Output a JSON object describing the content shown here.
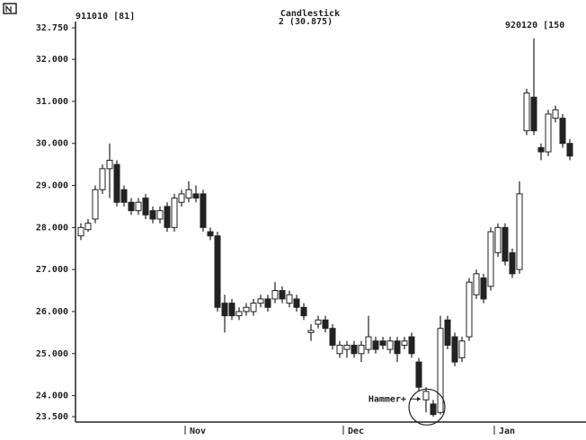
{
  "chart_data": {
    "type": "candlestick",
    "title": "Candlestick",
    "subtitle": "2 (30.875)",
    "left_label": "911010 [81]",
    "right_label": "920120 [150",
    "annotation": "Hammer+",
    "annotation_index": 48,
    "ylim": [
      23.5,
      32.75
    ],
    "yticks": [
      {
        "value": 23.5,
        "label": "23.500"
      },
      {
        "value": 24,
        "label": "24.000"
      },
      {
        "value": 25,
        "label": "25.000"
      },
      {
        "value": 26,
        "label": "26.000"
      },
      {
        "value": 27,
        "label": "27.000"
      },
      {
        "value": 28,
        "label": "28.000"
      },
      {
        "value": 29,
        "label": "29.000"
      },
      {
        "value": 30,
        "label": "30.000"
      },
      {
        "value": 31,
        "label": "31.000"
      },
      {
        "value": 32,
        "label": "32.000"
      },
      {
        "value": 32.75,
        "label": "32.750"
      }
    ],
    "categories": [
      null,
      null,
      null,
      null,
      null,
      null,
      null,
      null,
      null,
      null,
      null,
      null,
      null,
      null,
      null,
      "Nov",
      null,
      null,
      null,
      null,
      null,
      null,
      null,
      null,
      null,
      null,
      null,
      null,
      null,
      null,
      null,
      null,
      null,
      null,
      null,
      null,
      null,
      "Dec",
      null,
      null,
      null,
      null,
      null,
      null,
      null,
      null,
      null,
      null,
      null,
      null,
      null,
      null,
      null,
      null,
      null,
      null,
      null,
      null,
      "Jan",
      null,
      null,
      null,
      null,
      null,
      null,
      null,
      null,
      null,
      null
    ],
    "open": [
      27.8,
      27.95,
      28.2,
      28.9,
      29.4,
      29.5,
      28.9,
      28.6,
      28.4,
      28.7,
      28.4,
      28.2,
      28.5,
      28.0,
      28.6,
      28.7,
      28.8,
      28.8,
      27.9,
      27.8,
      26.2,
      26.2,
      25.9,
      26.0,
      26.0,
      26.2,
      26.3,
      26.3,
      26.5,
      26.2,
      26.3,
      26.1,
      25.5,
      25.7,
      25.8,
      25.6,
      25.0,
      25.1,
      25.2,
      25.0,
      25.1,
      25.3,
      25.3,
      25.1,
      25.3,
      25.2,
      25.4,
      24.8,
      23.9,
      23.8,
      23.6,
      25.8,
      25.4,
      24.9,
      25.4,
      26.4,
      26.8,
      26.6,
      27.4,
      28.0,
      27.4,
      27.0,
      30.3,
      31.1,
      29.9,
      29.8,
      30.6,
      30.6,
      30.0
    ],
    "high": [
      28.1,
      28.2,
      29.0,
      29.5,
      30.0,
      29.6,
      29.0,
      28.7,
      28.7,
      28.8,
      28.5,
      28.5,
      28.6,
      28.8,
      28.9,
      29.1,
      29.0,
      28.9,
      28.0,
      27.9,
      26.4,
      26.3,
      26.1,
      26.2,
      26.3,
      26.4,
      26.4,
      26.7,
      26.6,
      26.5,
      26.4,
      26.2,
      25.7,
      25.9,
      25.9,
      25.7,
      25.3,
      25.3,
      25.3,
      25.3,
      25.9,
      25.4,
      25.4,
      25.4,
      25.4,
      25.4,
      25.5,
      24.9,
      24.2,
      23.9,
      25.9,
      25.9,
      25.5,
      25.4,
      26.8,
      27.0,
      26.9,
      28.0,
      28.1,
      28.1,
      27.5,
      29.1,
      31.3,
      32.5,
      30.0,
      30.8,
      30.9,
      30.7,
      30.1
    ],
    "low": [
      27.7,
      27.9,
      28.1,
      28.8,
      28.7,
      28.5,
      28.5,
      28.3,
      28.3,
      28.2,
      28.1,
      28.1,
      27.9,
      27.9,
      28.5,
      28.6,
      28.6,
      27.9,
      27.7,
      26.0,
      25.5,
      25.8,
      25.8,
      25.9,
      25.9,
      26.1,
      26.0,
      26.2,
      26.2,
      26.1,
      26.0,
      25.8,
      25.3,
      25.6,
      25.5,
      25.1,
      24.9,
      24.9,
      24.9,
      24.8,
      25.0,
      25.0,
      25.1,
      25.0,
      24.8,
      25.1,
      24.9,
      24.1,
      23.6,
      23.5,
      23.55,
      25.1,
      24.7,
      24.8,
      25.3,
      26.3,
      26.2,
      26.5,
      27.3,
      27.1,
      26.8,
      26.9,
      30.2,
      30.2,
      29.6,
      29.7,
      30.5,
      29.9,
      29.6
    ],
    "close": [
      28.0,
      28.1,
      28.9,
      29.4,
      29.6,
      28.6,
      28.6,
      28.4,
      28.6,
      28.3,
      28.2,
      28.4,
      28.0,
      28.7,
      28.8,
      28.9,
      28.7,
      28.0,
      27.8,
      26.1,
      25.9,
      25.9,
      26.0,
      26.1,
      26.2,
      26.3,
      26.1,
      26.5,
      26.3,
      26.4,
      26.1,
      25.9,
      25.55,
      25.8,
      25.6,
      25.2,
      25.2,
      25.2,
      25.0,
      25.2,
      25.4,
      25.1,
      25.2,
      25.3,
      25.0,
      25.3,
      25.0,
      24.2,
      24.1,
      23.55,
      25.6,
      25.2,
      24.8,
      25.3,
      26.7,
      26.9,
      26.3,
      27.9,
      28.0,
      27.2,
      26.9,
      28.8,
      31.2,
      30.3,
      29.8,
      30.7,
      30.8,
      30.0,
      29.7
    ]
  }
}
